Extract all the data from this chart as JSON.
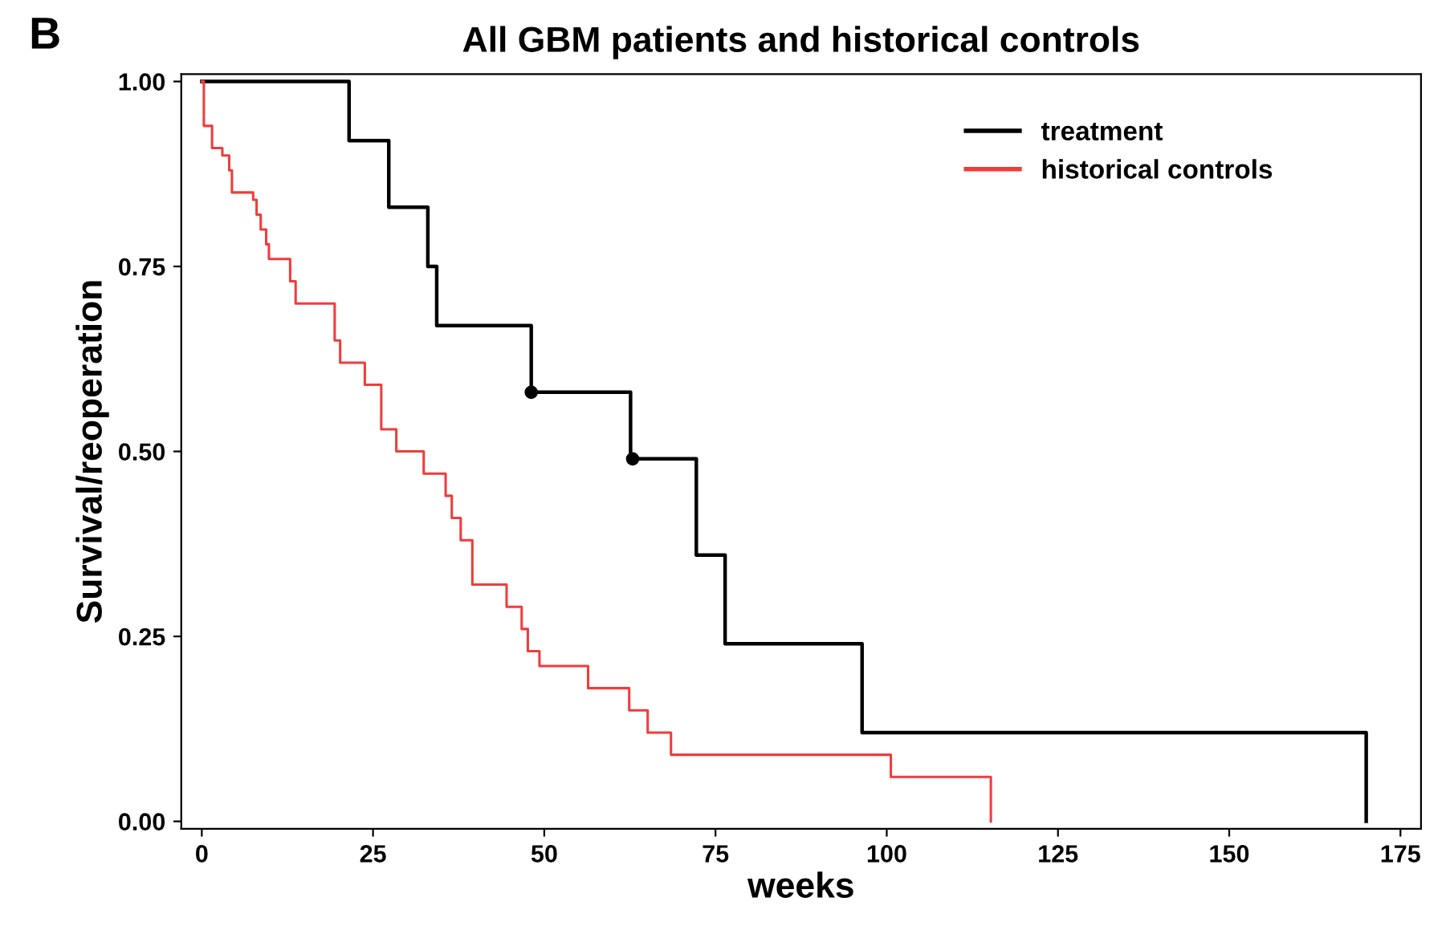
{
  "chart_data": {
    "type": "step",
    "title": "All GBM patients and historical controls",
    "xlabel": "weeks",
    "ylabel": "Survival/reoperation",
    "annotations": [
      "B"
    ],
    "series": [
      {
        "name": "treatment",
        "color": "#000000",
        "x": [
          0,
          21.5,
          27.3,
          33.0,
          34.3,
          48.1,
          62.6,
          72.2,
          76.4,
          96.4,
          170
        ],
        "values": [
          1.0,
          0.92,
          0.83,
          0.75,
          0.67,
          0.58,
          0.49,
          0.36,
          0.24,
          0.12,
          0.0
        ]
      },
      {
        "name": "historical controls",
        "color": "#f03c3c",
        "x": [
          0,
          0.3,
          1.5,
          3.0,
          4.0,
          4.4,
          7.5,
          8.0,
          8.6,
          9.4,
          9.8,
          12.9,
          13.7,
          19.4,
          20.2,
          23.8,
          26.2,
          28.4,
          32.4,
          35.6,
          36.5,
          37.8,
          39.5,
          44.5,
          46.7,
          47.6,
          49.3,
          56.4,
          62.4,
          65.1,
          68.5,
          100.6,
          115.2
        ],
        "values": [
          1.0,
          0.94,
          0.91,
          0.9,
          0.88,
          0.85,
          0.84,
          0.82,
          0.8,
          0.78,
          0.76,
          0.73,
          0.7,
          0.65,
          0.62,
          0.59,
          0.53,
          0.5,
          0.47,
          0.44,
          0.41,
          0.38,
          0.32,
          0.29,
          0.26,
          0.23,
          0.21,
          0.18,
          0.15,
          0.12,
          0.09,
          0.06,
          0.0
        ]
      },
      {
        "type": "scatter",
        "color": "#000000",
        "marker": "circle",
        "x": [
          48.1,
          62.9
        ],
        "values": [
          0.58,
          0.49
        ]
      }
    ],
    "xlim": [
      -3,
      178
    ],
    "ylim": [
      -0.01,
      1.01
    ],
    "xticks": [
      0,
      25,
      50,
      75,
      100,
      125,
      150,
      175
    ],
    "yticks": [
      {
        "value": 0,
        "label": "0.00"
      },
      {
        "value": 0.25,
        "label": "0.25"
      },
      {
        "value": 0.5,
        "label": "0.50"
      },
      {
        "value": 0.75,
        "label": "0.75"
      },
      {
        "value": 1,
        "label": "1.00"
      }
    ],
    "legend": "top right",
    "grid": false
  }
}
